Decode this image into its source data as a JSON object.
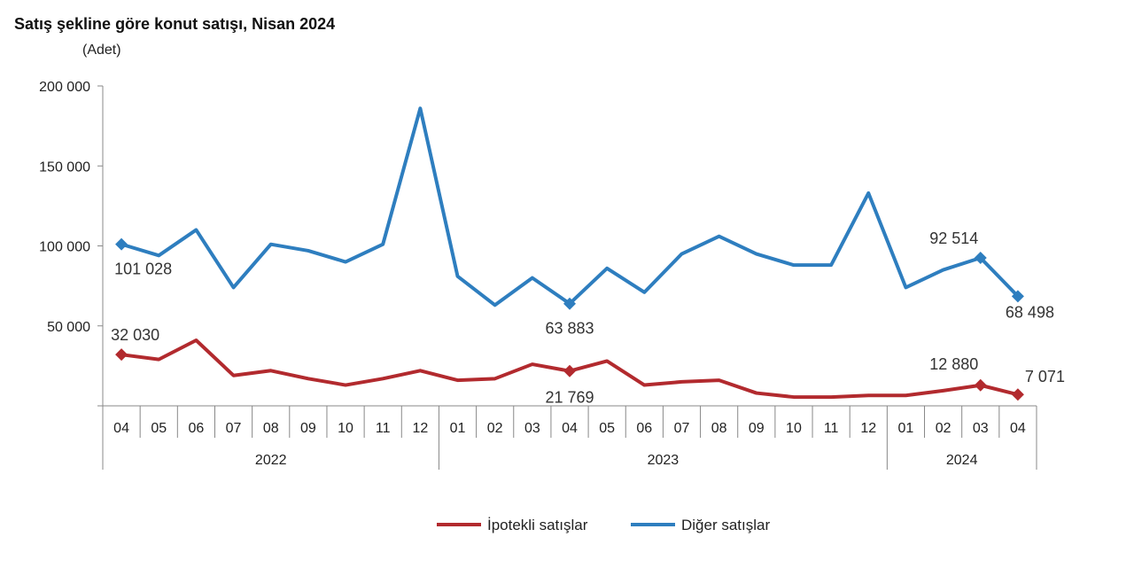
{
  "chart_data": {
    "type": "line",
    "title": "Satış şekline göre konut satışı, Nisan 2024",
    "ylabel": "(Adet)",
    "xlabel": "",
    "ylim": [
      0,
      200000
    ],
    "yticks": [
      0,
      50000,
      100000,
      150000,
      200000
    ],
    "ytick_labels": [
      "",
      "50 000",
      "100 000",
      "150 000",
      "200 000"
    ],
    "grid": false,
    "legend": "bottom",
    "categories": [
      "04",
      "05",
      "06",
      "07",
      "08",
      "09",
      "10",
      "11",
      "12",
      "01",
      "02",
      "03",
      "04",
      "05",
      "06",
      "07",
      "08",
      "09",
      "10",
      "11",
      "12",
      "01",
      "02",
      "03",
      "04"
    ],
    "year_groups": [
      {
        "label": "2022",
        "count": 9
      },
      {
        "label": "2023",
        "count": 12
      },
      {
        "label": "2024",
        "count": 4
      }
    ],
    "series": [
      {
        "name": "İpotekli satışlar",
        "color": "#b22a2e",
        "values": [
          32030,
          29000,
          41000,
          19000,
          22000,
          17000,
          13000,
          17000,
          22000,
          16000,
          17000,
          26000,
          21769,
          28000,
          13000,
          15000,
          16000,
          8000,
          5500,
          5500,
          6500,
          6500,
          9500,
          12880,
          7071
        ],
        "labeled_points": [
          {
            "index": 0,
            "label": "32 030"
          },
          {
            "index": 12,
            "label": "21 769"
          },
          {
            "index": 23,
            "label": "12 880"
          },
          {
            "index": 24,
            "label": "7 071"
          }
        ]
      },
      {
        "name": "Diğer satışlar",
        "color": "#2e7ebf",
        "values": [
          101028,
          94000,
          110000,
          74000,
          101000,
          97000,
          90000,
          101000,
          186000,
          81000,
          63000,
          80000,
          63883,
          86000,
          71000,
          95000,
          106000,
          95000,
          88000,
          88000,
          133000,
          74000,
          85000,
          92514,
          68498
        ],
        "labeled_points": [
          {
            "index": 0,
            "label": "101 028"
          },
          {
            "index": 12,
            "label": "63 883"
          },
          {
            "index": 23,
            "label": "92 514"
          },
          {
            "index": 24,
            "label": "68 498"
          }
        ]
      }
    ]
  }
}
